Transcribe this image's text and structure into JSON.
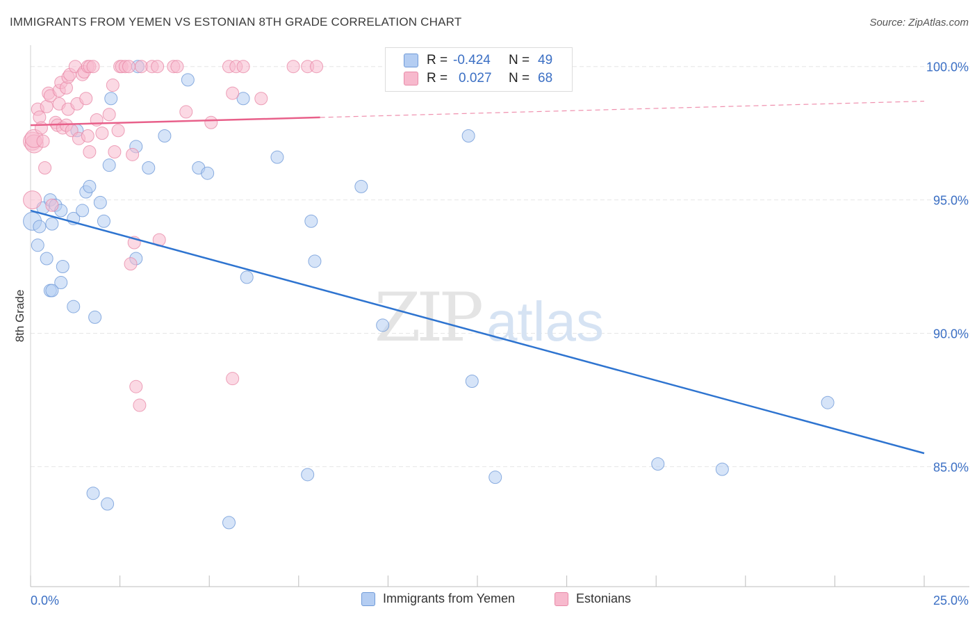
{
  "title": "IMMIGRANTS FROM YEMEN VS ESTONIAN 8TH GRADE CORRELATION CHART",
  "source": "Source: ZipAtlas.com",
  "watermark": {
    "zip": "ZIP",
    "atlas": "atlas"
  },
  "colors": {
    "blue_fill": "#b4cdf2",
    "blue_stroke": "#6f9ad8",
    "blue_line": "#2e74d0",
    "pink_fill": "#f7b9cd",
    "pink_stroke": "#e88aa8",
    "pink_line": "#e8608a",
    "axis_label": "#3b6fc4",
    "grid": "#e6e6e6"
  },
  "stats": [
    {
      "r_label": "R = ",
      "r_value": "-0.424",
      "n_label": "N = ",
      "n_value": "49",
      "series": "blue"
    },
    {
      "r_label": "R = ",
      "r_value": "0.027",
      "n_label": "N = ",
      "n_value": "68",
      "series": "pink"
    }
  ],
  "chart_data": {
    "type": "scatter",
    "title": "IMMIGRANTS FROM YEMEN VS ESTONIAN 8TH GRADE CORRELATION CHART",
    "xlabel": "",
    "ylabel": "8th Grade",
    "xlim": [
      0,
      25
    ],
    "ylim": [
      80.5,
      100.8
    ],
    "x_tick_labels": [
      {
        "value": 0,
        "label": "0.0%"
      },
      {
        "value": 25,
        "label": "25.0%"
      }
    ],
    "y_tick_labels": [
      {
        "value": 100,
        "label": "100.0%"
      },
      {
        "value": 95,
        "label": "95.0%"
      },
      {
        "value": 90,
        "label": "90.0%"
      },
      {
        "value": 85,
        "label": "85.0%"
      }
    ],
    "grid": true,
    "legend": "bottom",
    "series": [
      {
        "name": "Immigrants from Yemen",
        "color": "blue",
        "trend": {
          "x": [
            0,
            25
          ],
          "y": [
            94.6,
            85.5
          ],
          "dashed_from": null
        },
        "points": [
          [
            0.05,
            94.2
          ],
          [
            0.2,
            93.3
          ],
          [
            0.25,
            94.0
          ],
          [
            0.35,
            94.7
          ],
          [
            0.45,
            92.8
          ],
          [
            0.55,
            95.0
          ],
          [
            0.6,
            94.1
          ],
          [
            0.7,
            94.8
          ],
          [
            0.85,
            94.6
          ],
          [
            0.9,
            92.5
          ],
          [
            0.85,
            91.9
          ],
          [
            0.55,
            91.6
          ],
          [
            0.6,
            91.6
          ],
          [
            1.2,
            94.3
          ],
          [
            1.45,
            94.6
          ],
          [
            1.55,
            95.3
          ],
          [
            1.65,
            95.5
          ],
          [
            1.3,
            97.6
          ],
          [
            1.95,
            94.9
          ],
          [
            2.05,
            94.2
          ],
          [
            2.2,
            96.3
          ],
          [
            2.25,
            98.8
          ],
          [
            2.95,
            97.0
          ],
          [
            3.0,
            100.0
          ],
          [
            3.3,
            96.2
          ],
          [
            3.75,
            97.4
          ],
          [
            4.4,
            99.5
          ],
          [
            4.7,
            96.2
          ],
          [
            4.95,
            96.0
          ],
          [
            5.95,
            98.8
          ],
          [
            6.05,
            92.1
          ],
          [
            6.9,
            96.6
          ],
          [
            7.85,
            94.2
          ],
          [
            7.95,
            92.7
          ],
          [
            9.25,
            95.5
          ],
          [
            9.85,
            90.3
          ],
          [
            12.25,
            97.4
          ],
          [
            12.35,
            88.2
          ],
          [
            22.3,
            87.4
          ],
          [
            17.55,
            85.1
          ],
          [
            19.35,
            84.9
          ],
          [
            7.75,
            84.7
          ],
          [
            13.0,
            84.6
          ],
          [
            1.8,
            90.6
          ],
          [
            2.95,
            92.8
          ],
          [
            1.2,
            91.0
          ],
          [
            1.75,
            84.0
          ],
          [
            2.15,
            83.6
          ],
          [
            5.55,
            82.9
          ]
        ]
      },
      {
        "name": "Estonians",
        "color": "pink",
        "trend": {
          "x": [
            0,
            25
          ],
          "y": [
            97.8,
            98.7
          ],
          "dashed_from": 8.1
        },
        "points": [
          [
            0.05,
            97.2
          ],
          [
            0.1,
            97.1
          ],
          [
            0.1,
            97.3
          ],
          [
            0.2,
            98.4
          ],
          [
            0.25,
            98.1
          ],
          [
            0.3,
            97.7
          ],
          [
            0.35,
            97.2
          ],
          [
            0.4,
            96.2
          ],
          [
            0.45,
            98.5
          ],
          [
            0.5,
            99.0
          ],
          [
            0.55,
            98.9
          ],
          [
            0.6,
            94.8
          ],
          [
            0.7,
            97.9
          ],
          [
            0.75,
            97.8
          ],
          [
            0.8,
            98.6
          ],
          [
            0.8,
            99.1
          ],
          [
            0.85,
            99.4
          ],
          [
            0.9,
            97.7
          ],
          [
            1.0,
            97.8
          ],
          [
            1.05,
            98.4
          ],
          [
            1.0,
            99.2
          ],
          [
            1.05,
            99.6
          ],
          [
            1.1,
            99.7
          ],
          [
            1.15,
            97.6
          ],
          [
            1.25,
            100.0
          ],
          [
            1.3,
            98.6
          ],
          [
            1.35,
            97.3
          ],
          [
            1.45,
            99.7
          ],
          [
            1.5,
            99.8
          ],
          [
            1.55,
            98.8
          ],
          [
            1.6,
            97.4
          ],
          [
            1.6,
            100.0
          ],
          [
            1.65,
            100.0
          ],
          [
            1.75,
            100.0
          ],
          [
            1.65,
            96.8
          ],
          [
            1.85,
            98.0
          ],
          [
            2.0,
            97.5
          ],
          [
            2.2,
            98.2
          ],
          [
            2.3,
            99.3
          ],
          [
            2.35,
            96.8
          ],
          [
            2.45,
            97.6
          ],
          [
            2.5,
            100.0
          ],
          [
            2.55,
            100.0
          ],
          [
            2.65,
            100.0
          ],
          [
            2.75,
            100.0
          ],
          [
            2.85,
            96.7
          ],
          [
            2.9,
            93.4
          ],
          [
            2.8,
            92.6
          ],
          [
            2.95,
            88.0
          ],
          [
            3.05,
            87.3
          ],
          [
            3.1,
            100.0
          ],
          [
            3.4,
            100.0
          ],
          [
            3.55,
            100.0
          ],
          [
            3.6,
            93.5
          ],
          [
            4.0,
            100.0
          ],
          [
            4.1,
            100.0
          ],
          [
            4.35,
            98.3
          ],
          [
            5.05,
            97.9
          ],
          [
            5.55,
            100.0
          ],
          [
            5.65,
            99.0
          ],
          [
            5.75,
            100.0
          ],
          [
            5.95,
            100.0
          ],
          [
            6.45,
            98.8
          ],
          [
            7.35,
            100.0
          ],
          [
            7.75,
            100.0
          ],
          [
            8.0,
            100.0
          ],
          [
            5.65,
            88.3
          ],
          [
            0.05,
            95.0
          ]
        ]
      }
    ]
  },
  "legend_items": [
    {
      "label": "Immigrants from Yemen",
      "color": "blue"
    },
    {
      "label": "Estonians",
      "color": "pink"
    }
  ]
}
